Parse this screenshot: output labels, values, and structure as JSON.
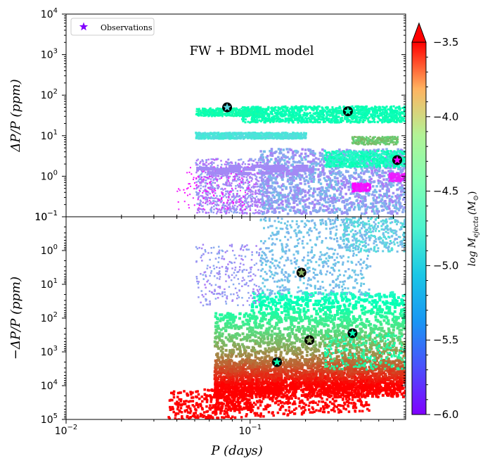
{
  "chart_data": {
    "type": "scatter",
    "model_label": "FW + BDML model",
    "xlabel": "P (days)",
    "xscale": "log",
    "xlim": [
      0.01,
      0.7
    ],
    "x_ticks": [
      {
        "value": 0.01,
        "base": "10",
        "exp": "−2"
      },
      {
        "value": 0.1,
        "base": "10",
        "exp": "−1"
      }
    ],
    "panels": [
      {
        "name": "top",
        "ylabel": "ΔP/P (ppm)",
        "yscale": "log",
        "ylim": [
          0.1,
          10000
        ],
        "y_ticks": [
          {
            "value": 10000,
            "base": "10",
            "exp": "4"
          },
          {
            "value": 1000,
            "base": "10",
            "exp": "3"
          },
          {
            "value": 100,
            "base": "10",
            "exp": "2"
          },
          {
            "value": 10,
            "base": "10",
            "exp": "1"
          },
          {
            "value": 1,
            "base": "10",
            "exp": "0"
          },
          {
            "value": 0.1,
            "base": "10",
            "exp": "−1"
          }
        ],
        "observations": [
          {
            "P": 0.075,
            "dPP": 50,
            "log_Mej": -5.2
          },
          {
            "P": 0.34,
            "dPP": 40,
            "log_Mej": -4.8
          },
          {
            "P": 0.63,
            "dPP": 2.5,
            "log_Mej": -6.0
          }
        ]
      },
      {
        "name": "bottom",
        "ylabel": "−ΔP/P (ppm)",
        "yscale": "log",
        "y_inverted": true,
        "ylim": [
          0.1,
          100000
        ],
        "y_ticks": [
          {
            "value": 0.1,
            "base": "10",
            "exp": "−1"
          },
          {
            "value": 1,
            "base": "10",
            "exp": "0"
          },
          {
            "value": 10,
            "base": "10",
            "exp": "1"
          },
          {
            "value": 100,
            "base": "10",
            "exp": "2"
          },
          {
            "value": 1000,
            "base": "10",
            "exp": "3"
          },
          {
            "value": 10000,
            "base": "10",
            "exp": "4"
          },
          {
            "value": 100000,
            "base": "10",
            "exp": "5"
          }
        ],
        "observations": [
          {
            "P": 0.19,
            "dPP": 4.5,
            "log_Mej": -4.1
          },
          {
            "P": 0.21,
            "dPP": 450,
            "log_Mej": -4.1
          },
          {
            "P": 0.36,
            "dPP": 280,
            "log_Mej": -4.8
          },
          {
            "P": 0.14,
            "dPP": 2000,
            "log_Mej": -4.7
          }
        ]
      }
    ],
    "legend": {
      "label": "Observations",
      "position": "top-left"
    },
    "colorbar": {
      "label": "log M_ejecta (M_⊙)",
      "label_text": "log M",
      "label_sub": "ejecta",
      "label_tail": "(M",
      "label_sun": "⊙",
      "label_close": ")",
      "colormap": "rainbow",
      "range": [
        -6.0,
        -3.5
      ],
      "extend": "max",
      "ticks": [
        {
          "value": -3.5,
          "label": "−3.5"
        },
        {
          "value": -4.0,
          "label": "−4.0"
        },
        {
          "value": -4.5,
          "label": "−4.5"
        },
        {
          "value": -5.0,
          "label": "−5.0"
        },
        {
          "value": -5.5,
          "label": "−5.5"
        },
        {
          "value": -6.0,
          "label": "−6.0"
        }
      ]
    }
  }
}
